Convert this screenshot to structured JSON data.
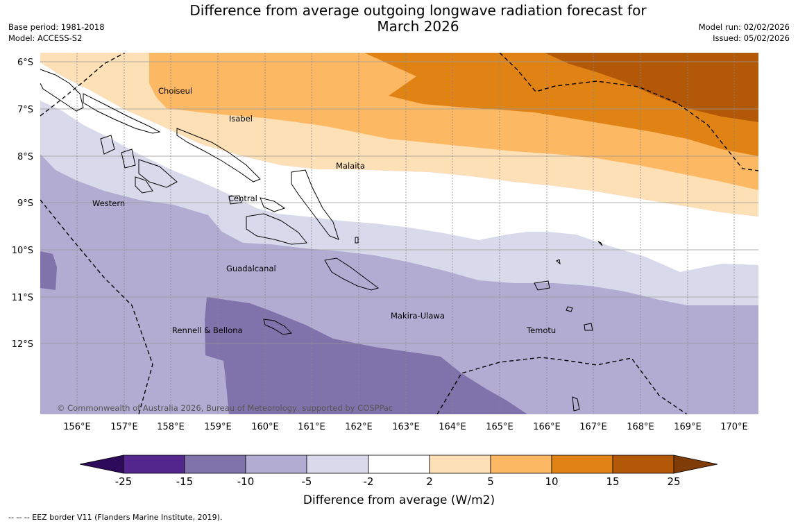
{
  "title": {
    "line1": "Difference from average outgoing longwave radiation forecast for",
    "line2": "March 2026"
  },
  "meta_left": {
    "base_period": "Base period: 1981-2018",
    "model": "Model: ACCESS-S2"
  },
  "meta_right": {
    "model_run": "Model run: 02/02/2026",
    "issued": "Issued: 05/02/2026"
  },
  "map": {
    "lat_labels": [
      "6°S",
      "7°S",
      "8°S",
      "9°S",
      "10°S",
      "11°S",
      "12°S"
    ],
    "lon_labels": [
      "156°E",
      "157°E",
      "158°E",
      "159°E",
      "160°E",
      "161°E",
      "162°E",
      "163°E",
      "164°E",
      "165°E",
      "166°E",
      "167°E",
      "168°E",
      "169°E",
      "170°E"
    ],
    "regions": [
      "Choiseul",
      "Isabel",
      "Malaita",
      "Western",
      "Central",
      "Guadalcanal",
      "Makira-Ulawa",
      "Rennell & Bellona",
      "Temotu"
    ],
    "copyright": "© Commonwealth of Australia 2026, Bureau of Meteorology, supported by COSPPac"
  },
  "colorbar": {
    "title": "Difference from average (W/m2)",
    "ticks": [
      "-25",
      "-15",
      "-10",
      "-5",
      "-2",
      "2",
      "5",
      "10",
      "15",
      "25"
    ],
    "colors": {
      "below_-25": "#2d0a5a",
      "-25_-15": "#54278f",
      "-15_-10": "#8073ac",
      "-10_-5": "#b2abd2",
      "-5_-2": "#d8daeb",
      "-2_2": "#ffffff",
      "2_5": "#fee0b6",
      "5_10": "#fdb863",
      "10_15": "#e08214",
      "15_25": "#b35806",
      "above_25": "#7f3b08"
    }
  },
  "eez_note": "-- -- -- EEZ border V11 (Flanders Marine Institute, 2019)."
}
